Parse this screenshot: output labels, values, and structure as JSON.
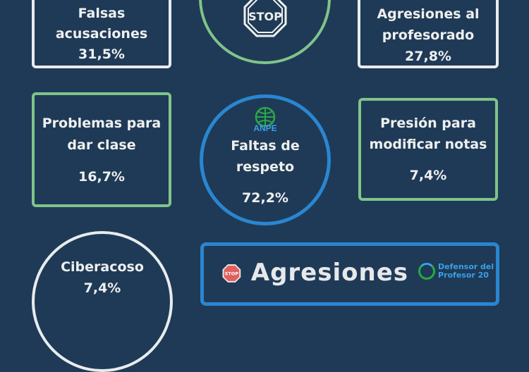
{
  "cards": [
    {
      "title": "Falsas acusaciones",
      "value": "31,5%"
    },
    {
      "title": "Agresiones al profesorado",
      "value": "27,8%"
    },
    {
      "title": "Problemas para dar clase",
      "value": "16,7%"
    },
    {
      "title": "Faltas de respeto",
      "value": "72,2%"
    },
    {
      "title": "Presión para modificar notas",
      "value": "7,4%"
    },
    {
      "title": "Ciberacoso",
      "value": "7,4%"
    }
  ],
  "stop_label": "STOP",
  "logo_anpe": "ANPE",
  "banner": {
    "title": "Agresiones",
    "stop_label": "STOP",
    "logo": "Defensor del Profesor 20"
  },
  "colors": {
    "background": "#1f3a56",
    "green": "#7fc48a",
    "blue": "#2a86d1",
    "white": "#e8ecee"
  }
}
